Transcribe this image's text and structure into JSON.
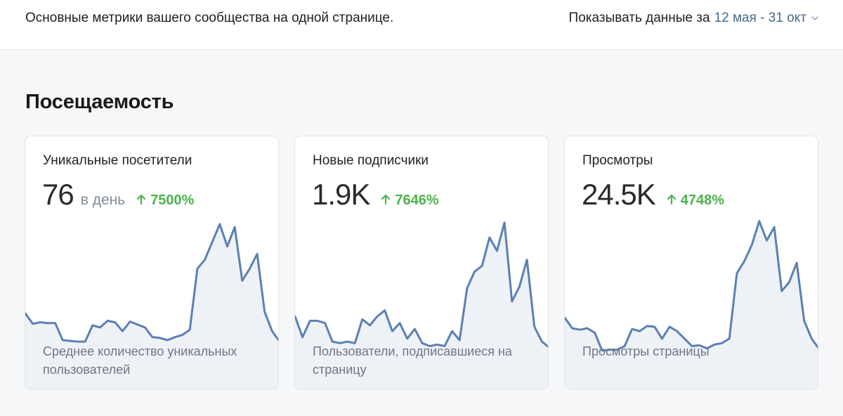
{
  "header": {
    "subtitle": "Основные метрики вашего сообщества на одной странице.",
    "period_label": "Показывать данные за",
    "period_range": "12 мая - 31 окт",
    "period_icon": "chevron-down-icon"
  },
  "section": {
    "title": "Посещаемость"
  },
  "colors": {
    "accent_blue": "#476b8f",
    "line": "#5b80b3",
    "fill": "#eef1f6",
    "positive": "#4bb34b"
  },
  "cards": [
    {
      "title": "Уникальные посетители",
      "value": "76",
      "unit": "в день",
      "delta": "7500%",
      "delta_icon": "arrow-up-icon",
      "desc": "Среднее количество уникальных пользователей",
      "series": [
        52,
        45,
        46,
        45.5,
        45.5,
        34,
        33.5,
        33,
        33,
        44,
        42.5,
        47,
        46,
        40,
        46.5,
        44.5,
        42.5,
        36,
        35.5,
        34,
        36,
        37.5,
        41,
        82,
        88,
        100,
        112,
        97,
        110,
        74,
        82,
        92,
        53,
        40,
        33
      ]
    },
    {
      "title": "Новые подписчики",
      "value": "1.9K",
      "unit": "",
      "delta": "7646%",
      "delta_icon": "arrow-up-icon",
      "desc": "Пользователи, подписавшиеся на страницу",
      "series": [
        50,
        36,
        47,
        47,
        45.5,
        33,
        32,
        33,
        32,
        48,
        44,
        50,
        54,
        40,
        45.5,
        35,
        41.5,
        32,
        30,
        31,
        30,
        40,
        34,
        69,
        80,
        84,
        103,
        94,
        113,
        60,
        70,
        88,
        43,
        33,
        29
      ]
    },
    {
      "title": "Просмотры",
      "value": "24.5K",
      "unit": "",
      "delta": "4748%",
      "delta_icon": "arrow-up-icon",
      "desc": "Просмотры страницы",
      "series": [
        49,
        42,
        41,
        42,
        39,
        27,
        27.5,
        27.5,
        30,
        41.5,
        40,
        43.5,
        43,
        35,
        43,
        40,
        35,
        30,
        30.5,
        28.5,
        31,
        32,
        35,
        79,
        87,
        98,
        114,
        101,
        110,
        67,
        73,
        86,
        47,
        35,
        28
      ]
    }
  ]
}
